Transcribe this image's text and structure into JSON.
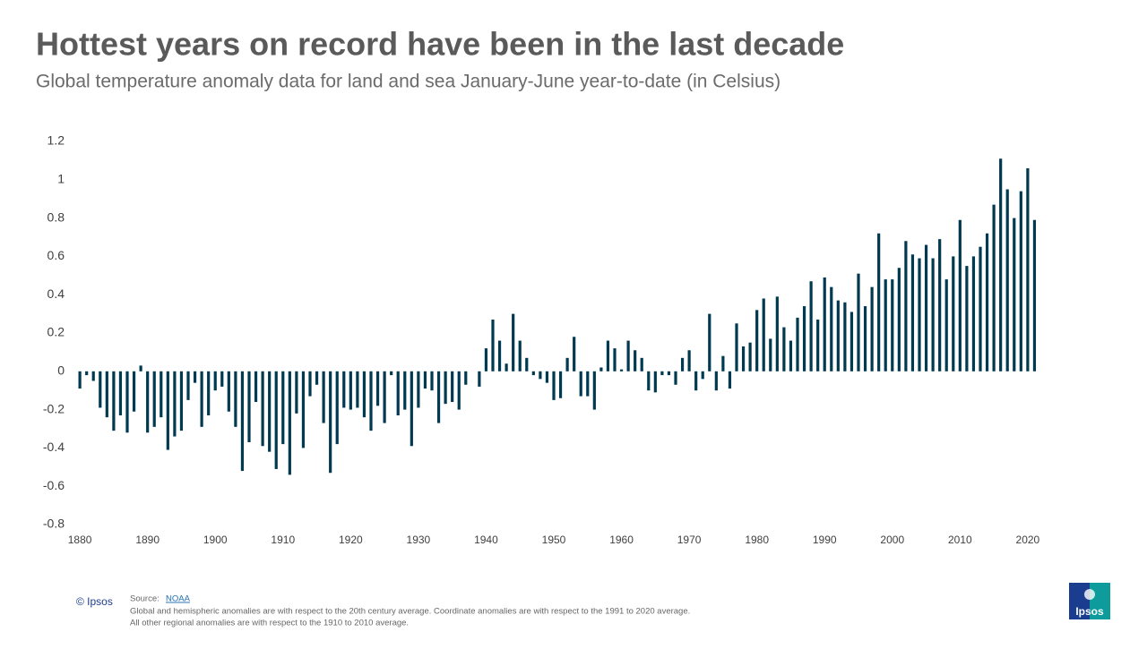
{
  "chart_data": {
    "type": "bar",
    "title": "Hottest years on record have been in the last decade",
    "subtitle": "Global temperature anomaly data for land and sea January-June year-to-date (in Celsius)",
    "x": [
      1880,
      1881,
      1882,
      1883,
      1884,
      1885,
      1886,
      1887,
      1888,
      1889,
      1890,
      1891,
      1892,
      1893,
      1894,
      1895,
      1896,
      1897,
      1898,
      1899,
      1900,
      1901,
      1902,
      1903,
      1904,
      1905,
      1906,
      1907,
      1908,
      1909,
      1910,
      1911,
      1912,
      1913,
      1914,
      1915,
      1916,
      1917,
      1918,
      1919,
      1920,
      1921,
      1922,
      1923,
      1924,
      1925,
      1926,
      1927,
      1928,
      1929,
      1930,
      1931,
      1932,
      1933,
      1934,
      1935,
      1936,
      1937,
      1938,
      1939,
      1940,
      1941,
      1942,
      1943,
      1944,
      1945,
      1946,
      1947,
      1948,
      1949,
      1950,
      1951,
      1952,
      1953,
      1954,
      1955,
      1956,
      1957,
      1958,
      1959,
      1960,
      1961,
      1962,
      1963,
      1964,
      1965,
      1966,
      1967,
      1968,
      1969,
      1970,
      1971,
      1972,
      1973,
      1974,
      1975,
      1976,
      1977,
      1978,
      1979,
      1980,
      1981,
      1982,
      1983,
      1984,
      1985,
      1986,
      1987,
      1988,
      1989,
      1990,
      1991,
      1992,
      1993,
      1994,
      1995,
      1996,
      1997,
      1998,
      1999,
      2000,
      2001,
      2002,
      2003,
      2004,
      2005,
      2006,
      2007,
      2008,
      2009,
      2010,
      2011,
      2012,
      2013,
      2014,
      2015,
      2016,
      2017,
      2018,
      2019,
      2020,
      2021
    ],
    "values": [
      -0.09,
      -0.02,
      -0.05,
      -0.19,
      -0.24,
      -0.31,
      -0.23,
      -0.32,
      -0.21,
      0.03,
      -0.32,
      -0.29,
      -0.24,
      -0.41,
      -0.34,
      -0.31,
      -0.15,
      -0.06,
      -0.29,
      -0.23,
      -0.1,
      -0.08,
      -0.21,
      -0.29,
      -0.52,
      -0.37,
      -0.16,
      -0.39,
      -0.42,
      -0.51,
      -0.38,
      -0.54,
      -0.22,
      -0.4,
      -0.13,
      -0.07,
      -0.27,
      -0.53,
      -0.38,
      -0.19,
      -0.2,
      -0.19,
      -0.24,
      -0.31,
      -0.18,
      -0.27,
      -0.02,
      -0.23,
      -0.2,
      -0.39,
      -0.19,
      -0.09,
      -0.1,
      -0.27,
      -0.17,
      -0.16,
      -0.2,
      -0.07,
      0.0,
      -0.08,
      0.12,
      0.27,
      0.16,
      0.04,
      0.3,
      0.16,
      0.07,
      -0.02,
      -0.04,
      -0.06,
      -0.15,
      -0.14,
      0.07,
      0.18,
      -0.13,
      -0.13,
      -0.2,
      0.02,
      0.16,
      0.12,
      0.01,
      0.16,
      0.11,
      0.07,
      -0.1,
      -0.11,
      -0.02,
      -0.02,
      -0.07,
      0.07,
      0.11,
      -0.1,
      -0.04,
      0.3,
      -0.1,
      0.08,
      -0.09,
      0.25,
      0.13,
      0.15,
      0.32,
      0.38,
      0.17,
      0.39,
      0.23,
      0.16,
      0.28,
      0.34,
      0.47,
      0.27,
      0.49,
      0.44,
      0.37,
      0.36,
      0.31,
      0.51,
      0.34,
      0.44,
      0.72,
      0.48,
      0.48,
      0.54,
      0.68,
      0.61,
      0.59,
      0.66,
      0.59,
      0.69,
      0.48,
      0.6,
      0.79,
      0.55,
      0.6,
      0.65,
      0.72,
      0.87,
      1.11,
      0.95,
      0.8,
      0.94,
      1.06,
      0.79
    ],
    "color": "#003a50",
    "xlim": [
      1878,
      2022
    ],
    "xticks": [
      1880,
      1890,
      1900,
      1910,
      1920,
      1930,
      1940,
      1950,
      1960,
      1970,
      1980,
      1990,
      2000,
      2010,
      2020
    ],
    "ylim": [
      -0.8,
      1.2
    ],
    "yticks": [
      1.2,
      1,
      0.8,
      0.6,
      0.4,
      0.2,
      0,
      -0.2,
      -0.4,
      -0.6,
      -0.8
    ],
    "grid": false,
    "copyright": "© Ipsos",
    "source_label": "Source:",
    "source_link": "NOAA",
    "notes": [
      "Global and hemispheric anomalies are with respect to the 20th century average. Coordinate anomalies are with respect to the 1991 to 2020 average.",
      "All other regional anomalies are with respect to the 1910 to 2010 average."
    ],
    "logo": "Ipsos"
  }
}
